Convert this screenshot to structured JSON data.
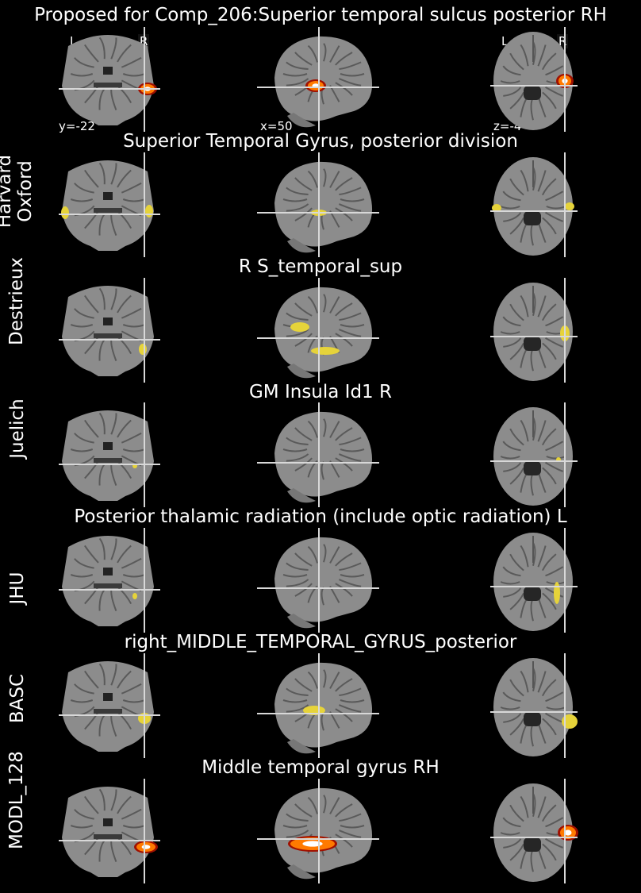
{
  "figure": {
    "title": "Proposed for Comp_206:Superior temporal sulcus posterior RH",
    "orientation": {
      "left": "L",
      "right": "R"
    },
    "coords": {
      "coronal": "y=-22",
      "sagittal": "x=50",
      "axial": "z=-4"
    }
  },
  "rows": [
    {
      "atlas": "",
      "region": "Proposed for Comp_206:Superior temporal sulcus posterior RH",
      "overlay": "hot"
    },
    {
      "atlas": "Harvard Oxford",
      "atlas_line1": "Harvard",
      "atlas_line2": "Oxford",
      "region": "Superior Temporal Gyrus, posterior division",
      "overlay": "yellow"
    },
    {
      "atlas": "Destrieux",
      "region": "R S_temporal_sup",
      "overlay": "yellow"
    },
    {
      "atlas": "Juelich",
      "region": "GM Insula Id1 R",
      "overlay": "yellow"
    },
    {
      "atlas": "JHU",
      "region": "Posterior thalamic radiation (include optic radiation) L",
      "overlay": "yellow"
    },
    {
      "atlas": "BASC",
      "region": "right_MIDDLE_TEMPORAL_GYRUS_posterior",
      "overlay": "yellow"
    },
    {
      "atlas": "MODL_128",
      "region": "Middle temporal gyrus RH",
      "overlay": "hot"
    }
  ],
  "colors": {
    "overlay_yellow": "#e6d33a",
    "overlay_hot_core": "#ffffff",
    "overlay_hot_mid": "#ff7a00",
    "overlay_hot_edge": "#a01000",
    "crosshair": "#d8d8d8",
    "brain_gray": "#8c8c8c"
  }
}
